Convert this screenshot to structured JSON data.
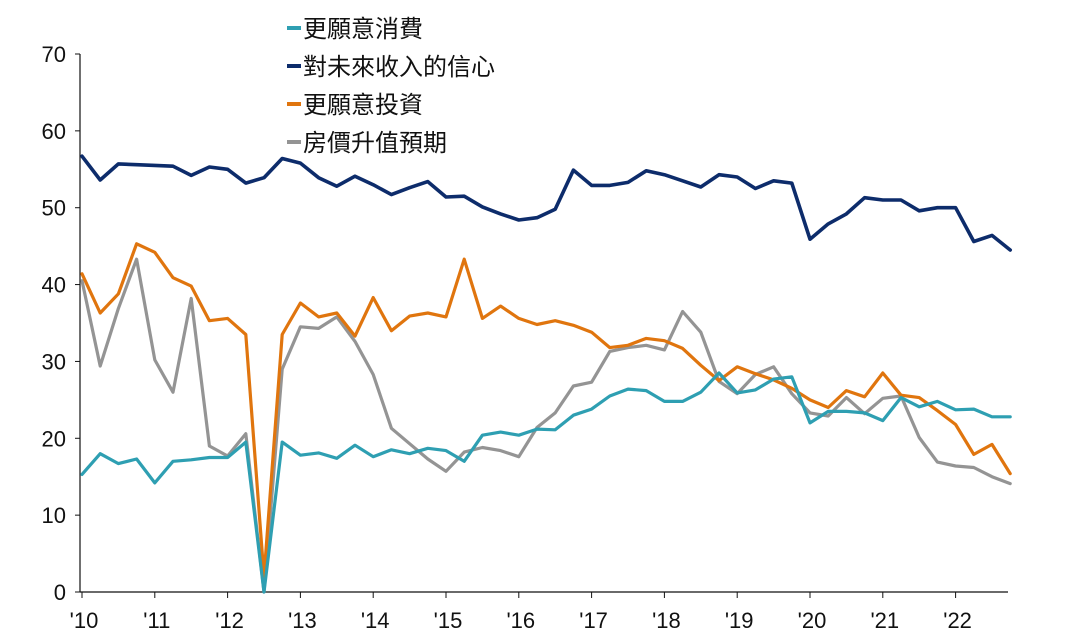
{
  "chart_data": {
    "type": "line",
    "title": "",
    "xlabel": "",
    "ylabel": "",
    "ylim": [
      0,
      70
    ],
    "yticks": [
      0,
      10,
      20,
      30,
      40,
      50,
      60,
      70
    ],
    "xticks": [
      "'10",
      "'11",
      "'12",
      "'13",
      "'14",
      "'15",
      "'16",
      "'17",
      "'18",
      "'19",
      "'20",
      "'21",
      "'22"
    ],
    "grid": false,
    "legend_position": "top-center",
    "x_start_quarter": "2010Q1",
    "series": [
      {
        "name": "更願意消費",
        "color": "#2E9FB2",
        "values": [
          15.3,
          18.0,
          16.7,
          17.3,
          14.2,
          17.0,
          17.2,
          17.5,
          17.5,
          19.5,
          0,
          19.5,
          17.8,
          18.1,
          17.4,
          19.1,
          17.6,
          18.5,
          18.0,
          18.7,
          18.4,
          17.0,
          20.4,
          20.8,
          20.4,
          21.2,
          21.1,
          23.0,
          23.8,
          25.5,
          26.4,
          26.2,
          24.8,
          24.8,
          26.0,
          28.5,
          25.9,
          26.3,
          27.7,
          28.0,
          22.0,
          23.5,
          23.5,
          23.3,
          22.3,
          25.3,
          24.1,
          24.8,
          23.7,
          23.8,
          22.8,
          22.8
        ]
      },
      {
        "name": "對未來收入的信心",
        "color": "#0D2C6B",
        "values": [
          56.7,
          53.6,
          55.7,
          55.6,
          55.5,
          55.4,
          54.2,
          55.3,
          55.0,
          53.2,
          53.9,
          56.4,
          55.8,
          53.9,
          52.8,
          54.1,
          53.0,
          51.7,
          52.6,
          53.4,
          51.4,
          51.5,
          50.1,
          49.2,
          48.4,
          48.7,
          49.8,
          54.9,
          52.9,
          52.9,
          53.3,
          54.8,
          54.3,
          53.5,
          52.7,
          54.3,
          54.0,
          52.5,
          53.5,
          53.2,
          45.9,
          47.9,
          49.2,
          51.3,
          51.0,
          51.0,
          49.6,
          50.0,
          50.0,
          45.6,
          46.4,
          44.5
        ]
      },
      {
        "name": "更願意投資",
        "color": "#E0750E",
        "values": [
          41.4,
          36.3,
          38.8,
          45.3,
          44.2,
          40.9,
          39.8,
          35.3,
          35.6,
          33.5,
          2.0,
          33.5,
          37.6,
          35.8,
          36.3,
          33.3,
          38.3,
          34.0,
          35.9,
          36.3,
          35.8,
          43.3,
          35.6,
          37.2,
          35.6,
          34.8,
          35.3,
          34.7,
          33.8,
          31.8,
          32.1,
          33.0,
          32.7,
          31.7,
          29.5,
          27.5,
          29.3,
          28.4,
          27.6,
          26.5,
          25.0,
          24.0,
          26.2,
          25.4,
          28.5,
          25.6,
          25.3,
          23.6,
          21.8,
          17.9,
          19.2,
          15.4
        ]
      },
      {
        "name": "房價升值預期",
        "color": "#949494",
        "values": [
          40.5,
          29.4,
          36.9,
          43.3,
          30.2,
          26.0,
          38.2,
          19.0,
          17.7,
          20.6,
          0.0,
          29.0,
          34.5,
          34.3,
          35.8,
          32.6,
          28.3,
          21.3,
          19.3,
          17.3,
          15.7,
          18.2,
          18.8,
          18.4,
          17.6,
          21.4,
          23.3,
          26.8,
          27.3,
          31.3,
          31.8,
          32.1,
          31.5,
          36.5,
          33.8,
          27.4,
          25.8,
          28.3,
          29.3,
          25.8,
          23.3,
          22.9,
          25.3,
          23.2,
          25.2,
          25.5,
          20.1,
          16.9,
          16.4,
          16.2,
          15.0,
          14.1
        ]
      }
    ]
  }
}
